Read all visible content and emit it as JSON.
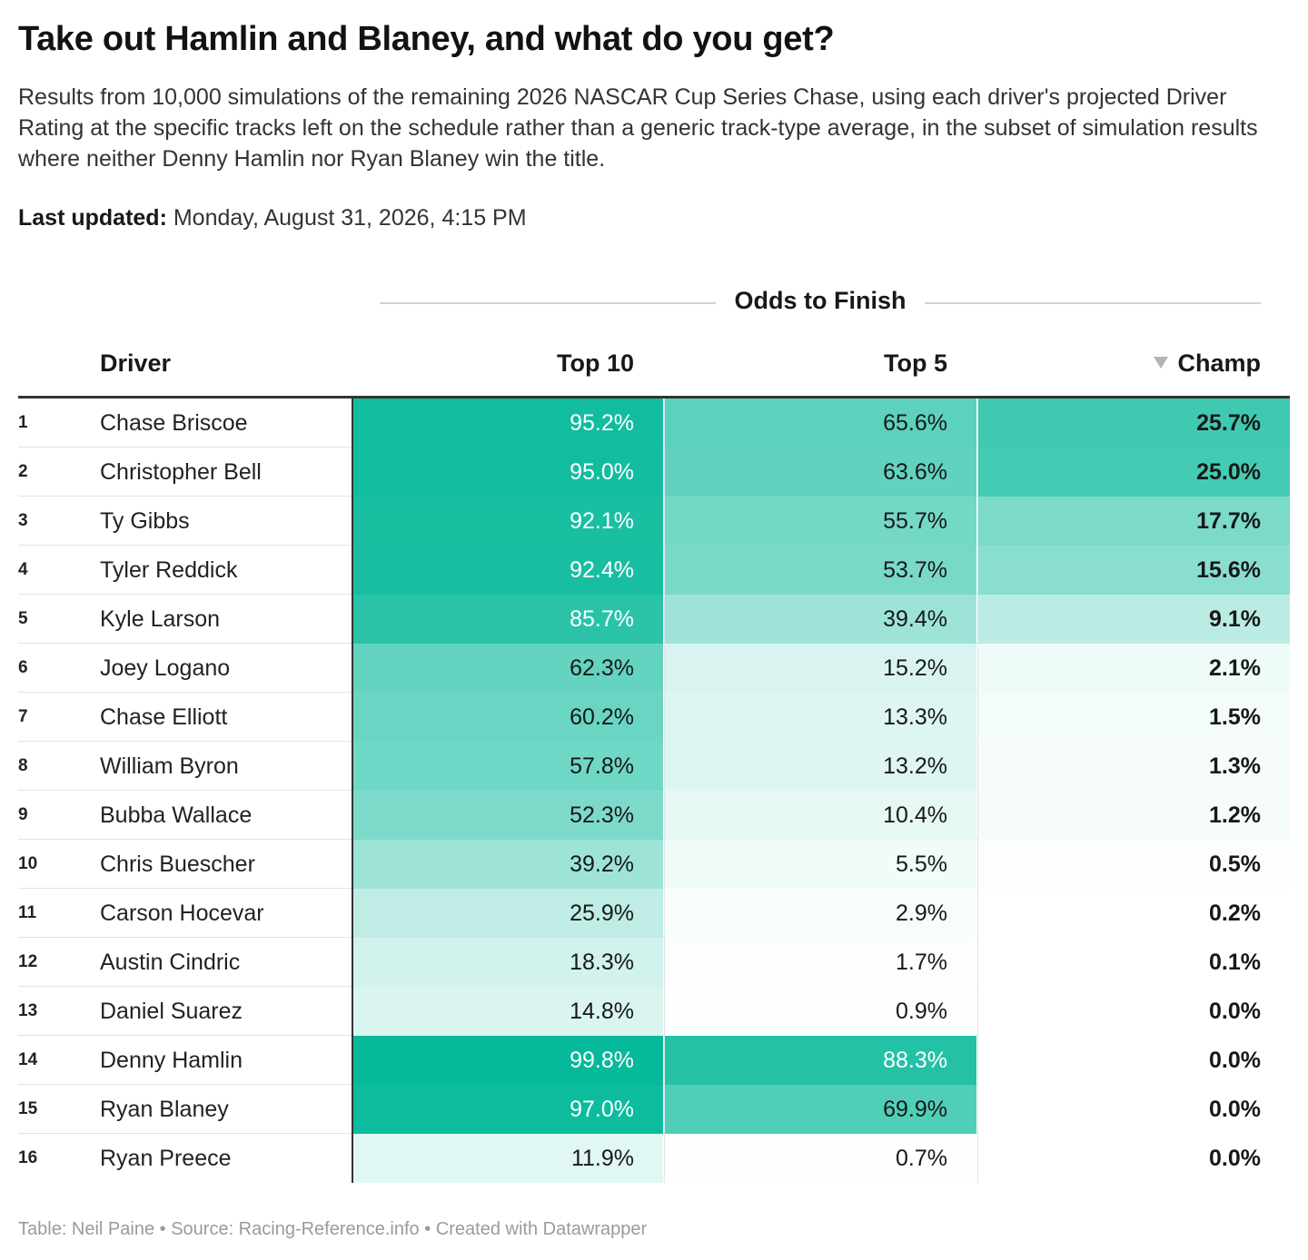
{
  "title": "Take out Hamlin and Blaney, and what do you get?",
  "subtitle": "Results from 10,000 simulations of the remaining 2026 NASCAR Cup Series Chase, using each driver's projected Driver Rating at the specific tracks left on the schedule rather than a generic track-type average, in the subset of simulation results where neither Denny Hamlin nor Ryan Blaney win the title.",
  "updated": {
    "label": "Last updated:",
    "value": "Monday, August 31, 2026, 4:15 PM"
  },
  "footer": "Table: Neil Paine • Source: Racing-Reference.info • Created with Datawrapper",
  "colors": {
    "heat_max": "#06b99a",
    "text_dark": "#181818",
    "text_light": "#ffffff"
  },
  "chart_data": {
    "type": "table",
    "group_header": "Odds to Finish",
    "columns": [
      "Driver",
      "Top 10",
      "Top 5",
      "Champ"
    ],
    "sort": {
      "column": "Champ",
      "direction": "descending",
      "icon": "sort-down-icon"
    },
    "rows": [
      {
        "rank": "1",
        "driver": "Chase Briscoe",
        "top10": "95.2%",
        "top5": "65.6%",
        "champ": "25.7%"
      },
      {
        "rank": "2",
        "driver": "Christopher Bell",
        "top10": "95.0%",
        "top5": "63.6%",
        "champ": "25.0%"
      },
      {
        "rank": "3",
        "driver": "Ty Gibbs",
        "top10": "92.1%",
        "top5": "55.7%",
        "champ": "17.7%"
      },
      {
        "rank": "4",
        "driver": "Tyler Reddick",
        "top10": "92.4%",
        "top5": "53.7%",
        "champ": "15.6%"
      },
      {
        "rank": "5",
        "driver": "Kyle Larson",
        "top10": "85.7%",
        "top5": "39.4%",
        "champ": "9.1%"
      },
      {
        "rank": "6",
        "driver": "Joey Logano",
        "top10": "62.3%",
        "top5": "15.2%",
        "champ": "2.1%"
      },
      {
        "rank": "7",
        "driver": "Chase Elliott",
        "top10": "60.2%",
        "top5": "13.3%",
        "champ": "1.5%"
      },
      {
        "rank": "8",
        "driver": "William Byron",
        "top10": "57.8%",
        "top5": "13.2%",
        "champ": "1.3%"
      },
      {
        "rank": "9",
        "driver": "Bubba Wallace",
        "top10": "52.3%",
        "top5": "10.4%",
        "champ": "1.2%"
      },
      {
        "rank": "10",
        "driver": "Chris Buescher",
        "top10": "39.2%",
        "top5": "5.5%",
        "champ": "0.5%"
      },
      {
        "rank": "11",
        "driver": "Carson Hocevar",
        "top10": "25.9%",
        "top5": "2.9%",
        "champ": "0.2%"
      },
      {
        "rank": "12",
        "driver": "Austin Cindric",
        "top10": "18.3%",
        "top5": "1.7%",
        "champ": "0.1%"
      },
      {
        "rank": "13",
        "driver": "Daniel Suarez",
        "top10": "14.8%",
        "top5": "0.9%",
        "champ": "0.0%"
      },
      {
        "rank": "14",
        "driver": "Denny Hamlin",
        "top10": "99.8%",
        "top5": "88.3%",
        "champ": "0.0%"
      },
      {
        "rank": "15",
        "driver": "Ryan Blaney",
        "top10": "97.0%",
        "top5": "69.9%",
        "champ": "0.0%"
      },
      {
        "rank": "16",
        "driver": "Ryan Preece",
        "top10": "11.9%",
        "top5": "0.7%",
        "champ": "0.0%"
      }
    ]
  }
}
